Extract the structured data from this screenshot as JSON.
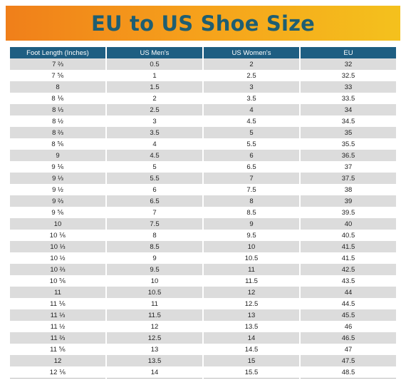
{
  "title": "EU to US Shoe Size",
  "colors": {
    "banner_start": "#f07f1a",
    "banner_end": "#f4c11d",
    "title_text": "#1e5e72",
    "header_bg": "#1e5e82",
    "row_alt": "#dcdcdc"
  },
  "headers": [
    "Foot Length (Inches)",
    "US Men's",
    "US Women's",
    "EU"
  ],
  "rows": [
    [
      "7 ⅔",
      "0.5",
      "2",
      "32"
    ],
    [
      "7 ⅚",
      "1",
      "2.5",
      "32.5"
    ],
    [
      "8",
      "1.5",
      "3",
      "33"
    ],
    [
      "8 ⅙",
      "2",
      "3.5",
      "33.5"
    ],
    [
      "8 ⅓",
      "2.5",
      "4",
      "34"
    ],
    [
      "8 ½",
      "3",
      "4.5",
      "34.5"
    ],
    [
      "8 ⅔",
      "3.5",
      "5",
      "35"
    ],
    [
      "8 ⅚",
      "4",
      "5.5",
      "35.5"
    ],
    [
      "9",
      "4.5",
      "6",
      "36.5"
    ],
    [
      "9 ⅙",
      "5",
      "6.5",
      "37"
    ],
    [
      "9 ⅓",
      "5.5",
      "7",
      "37.5"
    ],
    [
      "9 ½",
      "6",
      "7.5",
      "38"
    ],
    [
      "9 ⅔",
      "6.5",
      "8",
      "39"
    ],
    [
      "9 ⅚",
      "7",
      "8.5",
      "39.5"
    ],
    [
      "10",
      "7.5",
      "9",
      "40"
    ],
    [
      "10 ⅙",
      "8",
      "9.5",
      "40.5"
    ],
    [
      "10 ⅓",
      "8.5",
      "10",
      "41.5"
    ],
    [
      "10 ½",
      "9",
      "10.5",
      "41.5"
    ],
    [
      "10 ⅔",
      "9.5",
      "11",
      "42.5"
    ],
    [
      "10 ⅚",
      "10",
      "11.5",
      "43.5"
    ],
    [
      "11",
      "10.5",
      "12",
      "44"
    ],
    [
      "11 ⅙",
      "11",
      "12.5",
      "44.5"
    ],
    [
      "11 ⅓",
      "11.5",
      "13",
      "45.5"
    ],
    [
      "11 ½",
      "12",
      "13.5",
      "46"
    ],
    [
      "11 ⅔",
      "12.5",
      "14",
      "46.5"
    ],
    [
      "11 ⅚",
      "13",
      "14.5",
      "47"
    ],
    [
      "12",
      "13.5",
      "15",
      "47.5"
    ],
    [
      "12 ⅙",
      "14",
      "15.5",
      "48.5"
    ]
  ]
}
